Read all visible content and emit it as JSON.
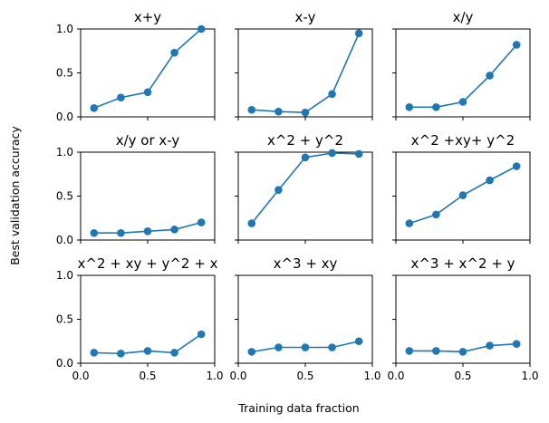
{
  "xlabel": "Training data fraction",
  "ylabel": "Best validation accuracy",
  "series_color": "#1f77b4",
  "chart_data": [
    {
      "type": "line",
      "title": "x+y",
      "x": [
        0.1,
        0.3,
        0.5,
        0.7,
        0.9
      ],
      "y": [
        0.1,
        0.22,
        0.28,
        0.73,
        1.0
      ],
      "xlim": [
        0,
        1
      ],
      "ylim": [
        0,
        1
      ],
      "xticks": [
        "0.0",
        "0.5",
        "1.0"
      ],
      "yticks": [
        "0.0",
        "0.5",
        "1.0"
      ]
    },
    {
      "type": "line",
      "title": "x-y",
      "x": [
        0.1,
        0.3,
        0.5,
        0.7,
        0.9
      ],
      "y": [
        0.08,
        0.06,
        0.05,
        0.26,
        0.95
      ],
      "xlim": [
        0,
        1
      ],
      "ylim": [
        0,
        1
      ],
      "xticks": [
        "0.0",
        "0.5",
        "1.0"
      ],
      "yticks": [
        "0.0",
        "0.5",
        "1.0"
      ]
    },
    {
      "type": "line",
      "title": "x/y",
      "x": [
        0.1,
        0.3,
        0.5,
        0.7,
        0.9
      ],
      "y": [
        0.11,
        0.11,
        0.17,
        0.47,
        0.82
      ],
      "xlim": [
        0,
        1
      ],
      "ylim": [
        0,
        1
      ],
      "xticks": [
        "0.0",
        "0.5",
        "1.0"
      ],
      "yticks": [
        "0.0",
        "0.5",
        "1.0"
      ]
    },
    {
      "type": "line",
      "title": "x/y or x-y",
      "x": [
        0.1,
        0.3,
        0.5,
        0.7,
        0.9
      ],
      "y": [
        0.08,
        0.08,
        0.1,
        0.12,
        0.2
      ],
      "xlim": [
        0,
        1
      ],
      "ylim": [
        0,
        1
      ],
      "xticks": [
        "0.0",
        "0.5",
        "1.0"
      ],
      "yticks": [
        "0.0",
        "0.5",
        "1.0"
      ]
    },
    {
      "type": "line",
      "title": "x^2 + y^2",
      "x": [
        0.1,
        0.3,
        0.5,
        0.7,
        0.9
      ],
      "y": [
        0.19,
        0.57,
        0.94,
        0.99,
        0.98
      ],
      "xlim": [
        0,
        1
      ],
      "ylim": [
        0,
        1
      ],
      "xticks": [
        "0.0",
        "0.5",
        "1.0"
      ],
      "yticks": [
        "0.0",
        "0.5",
        "1.0"
      ]
    },
    {
      "type": "line",
      "title": "x^2 +xy+ y^2",
      "x": [
        0.1,
        0.3,
        0.5,
        0.7,
        0.9
      ],
      "y": [
        0.19,
        0.29,
        0.51,
        0.68,
        0.84
      ],
      "xlim": [
        0,
        1
      ],
      "ylim": [
        0,
        1
      ],
      "xticks": [
        "0.0",
        "0.5",
        "1.0"
      ],
      "yticks": [
        "0.0",
        "0.5",
        "1.0"
      ]
    },
    {
      "type": "line",
      "title": "x^2 + xy + y^2 + x",
      "x": [
        0.1,
        0.3,
        0.5,
        0.7,
        0.9
      ],
      "y": [
        0.12,
        0.11,
        0.14,
        0.12,
        0.33
      ],
      "xlim": [
        0,
        1
      ],
      "ylim": [
        0,
        1
      ],
      "xticks": [
        "0.0",
        "0.5",
        "1.0"
      ],
      "yticks": [
        "0.0",
        "0.5",
        "1.0"
      ]
    },
    {
      "type": "line",
      "title": "x^3 + xy",
      "x": [
        0.1,
        0.3,
        0.5,
        0.7,
        0.9
      ],
      "y": [
        0.13,
        0.18,
        0.18,
        0.18,
        0.25
      ],
      "xlim": [
        0,
        1
      ],
      "ylim": [
        0,
        1
      ],
      "xticks": [
        "0.0",
        "0.5",
        "1.0"
      ],
      "yticks": [
        "0.0",
        "0.5",
        "1.0"
      ]
    },
    {
      "type": "line",
      "title": "x^3 + x^2 + y",
      "x": [
        0.1,
        0.3,
        0.5,
        0.7,
        0.9
      ],
      "y": [
        0.14,
        0.14,
        0.13,
        0.2,
        0.22
      ],
      "xlim": [
        0,
        1
      ],
      "ylim": [
        0,
        1
      ],
      "xticks": [
        "0.0",
        "0.5",
        "1.0"
      ],
      "yticks": [
        "0.0",
        "0.5",
        "1.0"
      ]
    }
  ]
}
